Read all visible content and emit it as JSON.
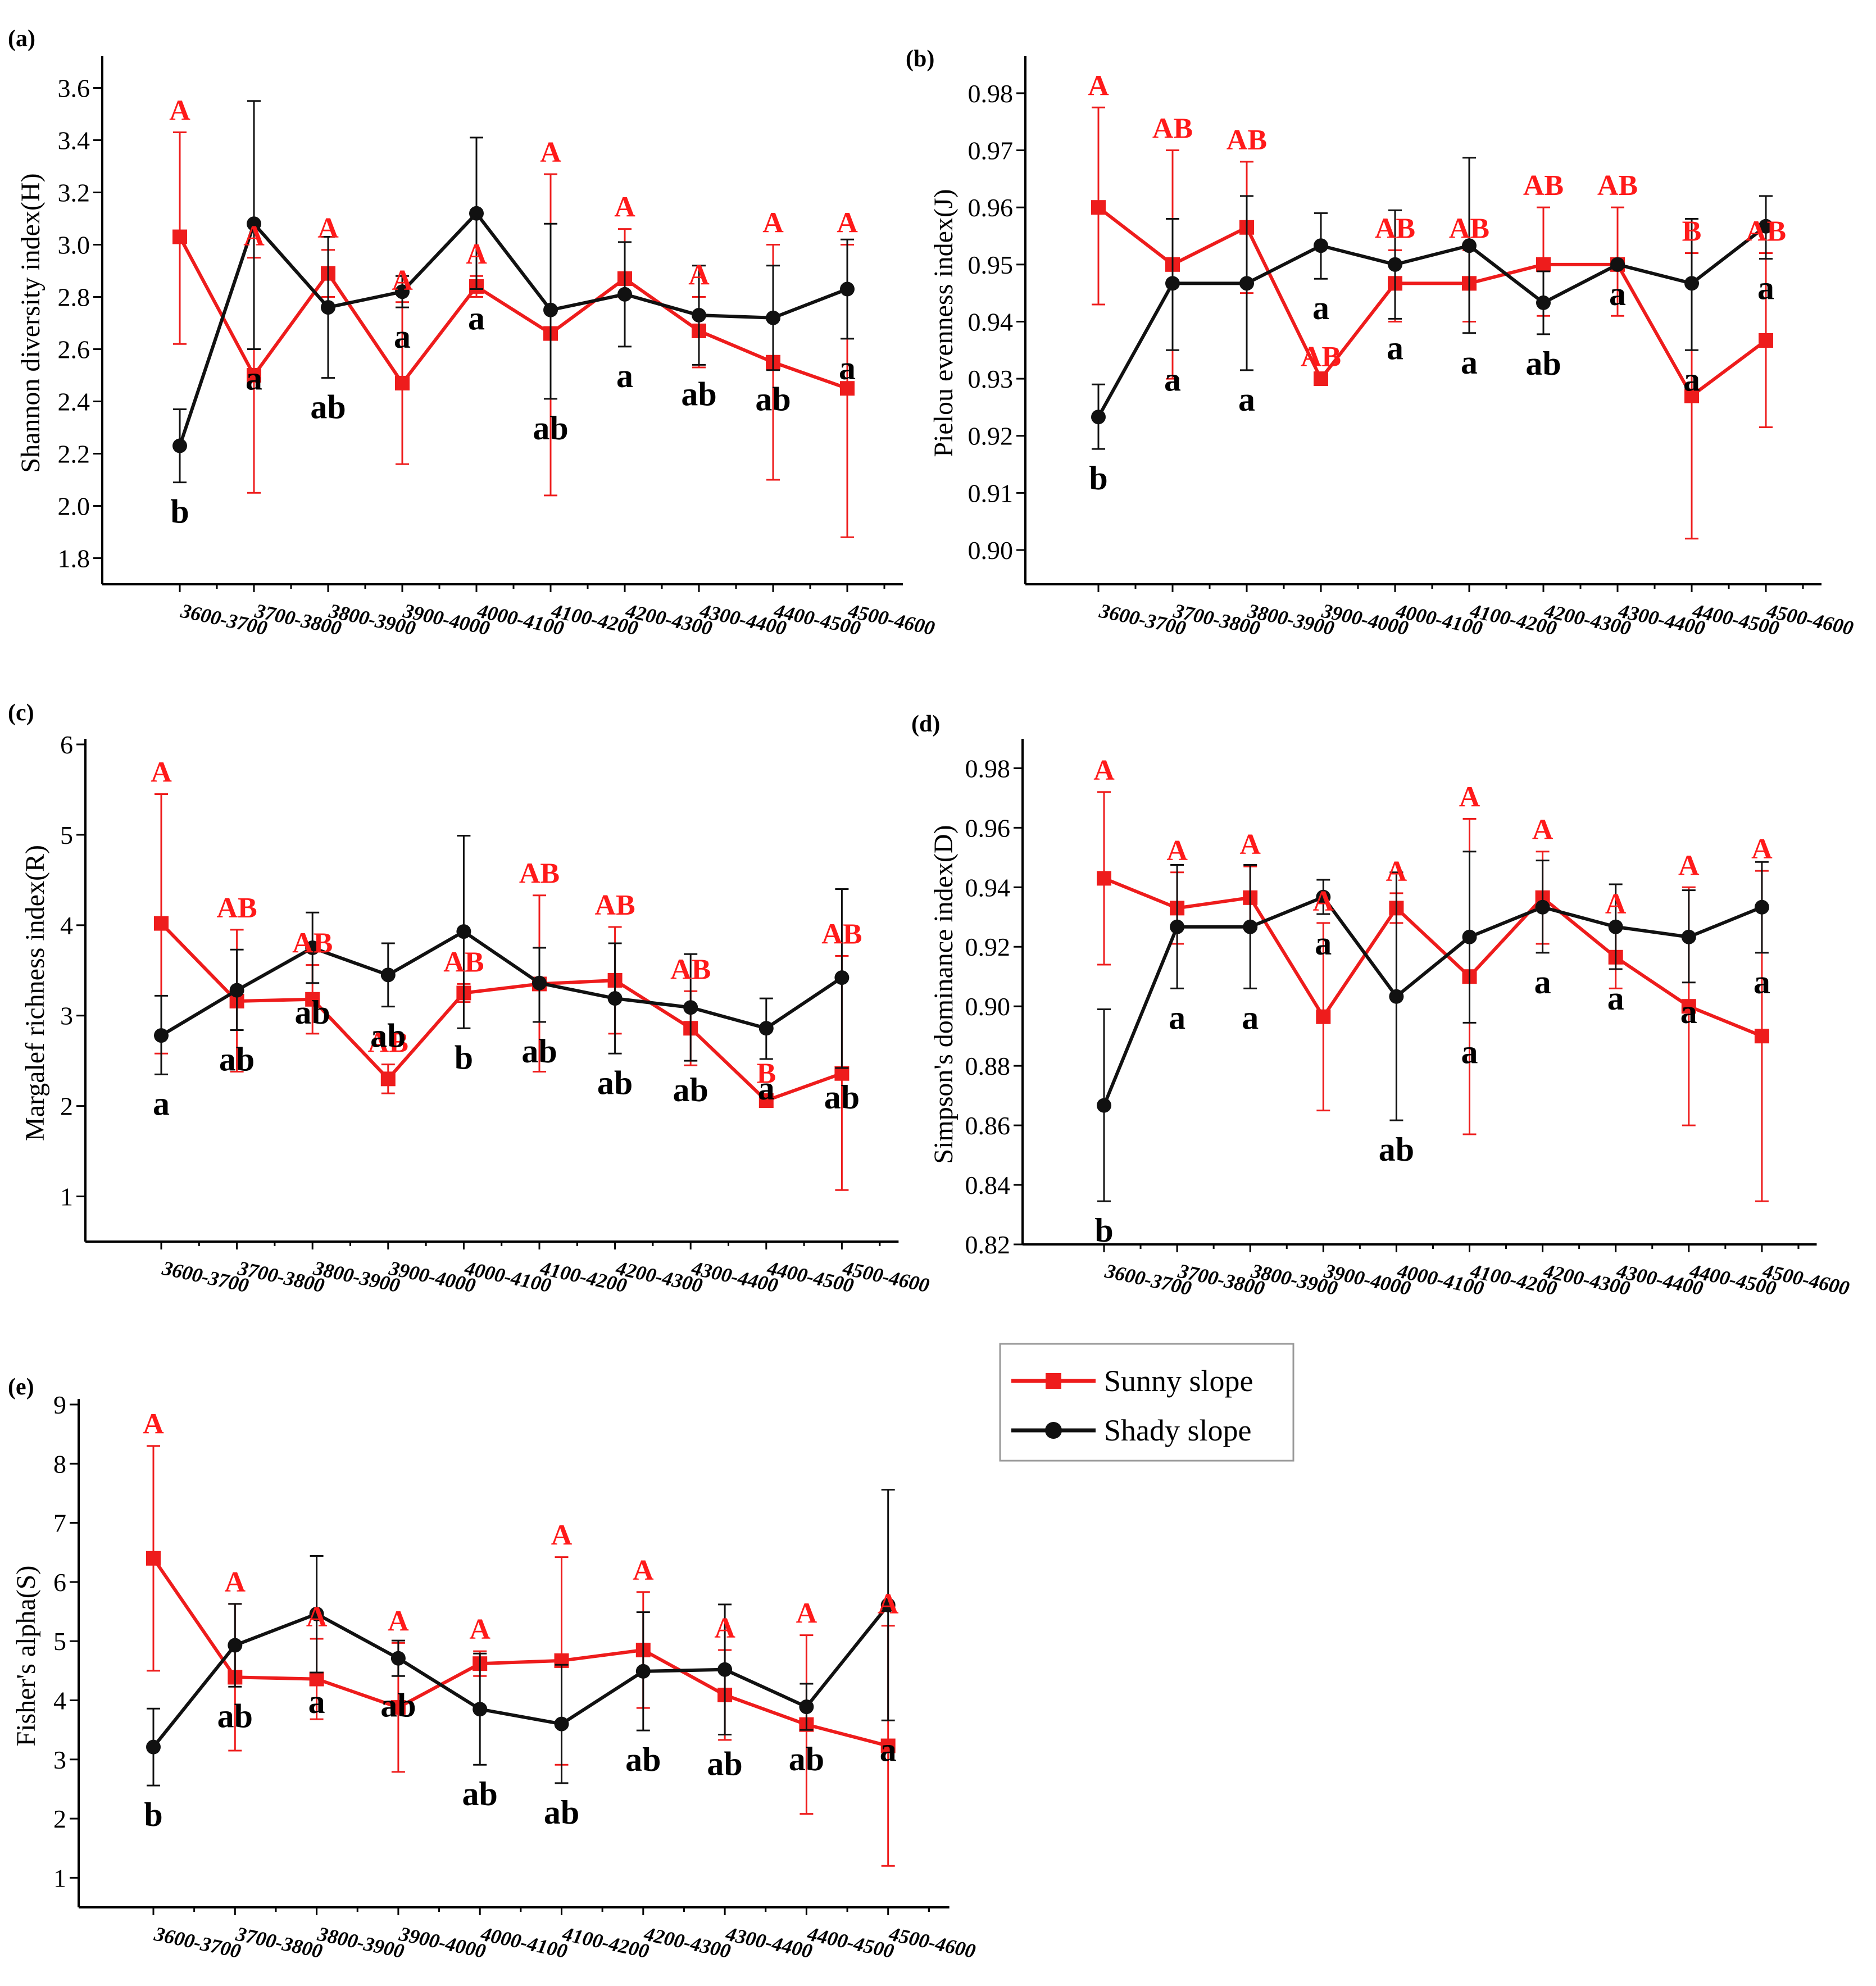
{
  "colors": {
    "sunny": "#ee1c1c",
    "shady": "#111111"
  },
  "legend": {
    "items": [
      {
        "label": "Sunny slope",
        "color": "#ee1c1c",
        "marker": "square"
      },
      {
        "label": "Shady slope",
        "color": "#111111",
        "marker": "circle"
      }
    ]
  },
  "chart_data": [
    {
      "type": "line",
      "panel_label": "(a)",
      "ylabel": "Shannon diversity index(H)",
      "categories": [
        "3600-3700",
        "3700-3800",
        "3800-3900",
        "3900-4000",
        "4000-4100",
        "4100-4200",
        "4200-4300",
        "4300-4400",
        "4400-4500",
        "4500-4600"
      ],
      "ylim": [
        1.7,
        3.7
      ],
      "yticks": [
        "1.8",
        "2.0",
        "2.2",
        "2.4",
        "2.6",
        "2.8",
        "3.0",
        "3.2",
        "3.4",
        "3.6"
      ],
      "series": [
        {
          "name": "Sunny slope",
          "values": [
            3.03,
            2.5,
            2.89,
            2.47,
            2.84,
            2.66,
            2.87,
            2.67,
            2.55,
            2.45
          ],
          "err_low": [
            2.62,
            2.05,
            2.8,
            2.16,
            2.8,
            2.04,
            2.8,
            2.53,
            2.1,
            1.88
          ],
          "err_high": [
            3.43,
            2.95,
            2.98,
            2.78,
            2.88,
            3.27,
            3.06,
            2.8,
            3.0,
            3.0
          ]
        },
        {
          "name": "Shady slope",
          "values": [
            2.23,
            3.08,
            2.76,
            2.82,
            3.12,
            2.75,
            2.81,
            2.73,
            2.72,
            2.83
          ],
          "err_low": [
            2.09,
            2.6,
            2.49,
            2.76,
            2.83,
            2.41,
            2.61,
            2.54,
            2.52,
            2.64
          ],
          "err_high": [
            2.37,
            3.55,
            3.03,
            2.88,
            3.41,
            3.08,
            3.01,
            2.92,
            2.92,
            3.02
          ]
        }
      ],
      "sig_upper": [
        "A",
        "A",
        "A",
        "A",
        "A",
        "A",
        "A",
        "A",
        "A",
        "A"
      ],
      "sig_lower": [
        "b",
        "a",
        "ab",
        "a",
        "a",
        "ab",
        "a",
        "ab",
        "ab",
        "a"
      ]
    },
    {
      "type": "line",
      "panel_label": "(b)",
      "ylabel": "Pielou evenness index(J)",
      "categories": [
        "3600-3700",
        "3700-3800",
        "3800-3900",
        "3900-4000",
        "4000-4100",
        "4100-4200",
        "4200-4300",
        "4300-4400",
        "4400-4500",
        "4500-4600"
      ],
      "ylim": [
        0.894,
        0.9855
      ],
      "yticks": [
        "0.90",
        "0.91",
        "0.92",
        "0.93",
        "0.94",
        "0.95",
        "0.96",
        "0.97",
        "0.98"
      ],
      "series": [
        {
          "name": "Sunny slope",
          "values": [
            0.96,
            0.95,
            0.9565,
            0.93,
            0.9467,
            0.9467,
            0.95,
            0.95,
            0.927,
            0.9367
          ],
          "err_low": [
            0.943,
            0.93,
            0.945,
            0.93,
            0.94,
            0.94,
            0.941,
            0.941,
            0.902,
            0.9215
          ],
          "err_high": [
            0.9775,
            0.97,
            0.968,
            0.93,
            0.9525,
            0.9525,
            0.96,
            0.96,
            0.952,
            0.952
          ]
        },
        {
          "name": "Shady slope",
          "values": [
            0.9233,
            0.9467,
            0.9467,
            0.9533,
            0.95,
            0.9533,
            0.9433,
            0.95,
            0.9467,
            0.9567
          ],
          "err_low": [
            0.9177,
            0.935,
            0.9315,
            0.9475,
            0.9405,
            0.938,
            0.9378,
            0.95,
            0.935,
            0.951
          ],
          "err_high": [
            0.929,
            0.958,
            0.962,
            0.959,
            0.9595,
            0.9687,
            0.9488,
            0.95,
            0.958,
            0.962
          ]
        }
      ],
      "sig_upper": [
        "A",
        "AB",
        "AB",
        "AB",
        "AB",
        "AB",
        "AB",
        "AB",
        "B",
        "AB"
      ],
      "sig_lower": [
        "b",
        "a",
        "a",
        "a",
        "a",
        "a",
        "ab",
        "a",
        "a",
        "a"
      ]
    },
    {
      "type": "line",
      "panel_label": "(c)",
      "ylabel": "Margalef richness index(R)",
      "categories": [
        "3600-3700",
        "3700-3800",
        "3800-3900",
        "3900-4000",
        "4000-4100",
        "4100-4200",
        "4200-4300",
        "4300-4400",
        "4400-4500",
        "4500-4600"
      ],
      "ylim": [
        0.5,
        6.0
      ],
      "yticks": [
        "1",
        "2",
        "3",
        "4",
        "5",
        "6"
      ],
      "series": [
        {
          "name": "Sunny slope",
          "values": [
            4.02,
            3.16,
            3.18,
            2.3,
            3.25,
            3.35,
            3.39,
            2.86,
            2.06,
            2.36
          ],
          "err_low": [
            2.58,
            2.38,
            2.8,
            2.14,
            3.15,
            2.38,
            2.8,
            2.45,
            2.0,
            1.07
          ],
          "err_high": [
            5.45,
            3.95,
            3.56,
            2.46,
            3.35,
            4.33,
            3.98,
            3.27,
            2.12,
            3.66
          ]
        },
        {
          "name": "Shady slope",
          "values": [
            2.78,
            3.28,
            3.75,
            3.45,
            3.93,
            3.36,
            3.19,
            3.09,
            2.86,
            3.42
          ],
          "err_low": [
            2.35,
            2.84,
            3.36,
            3.1,
            2.86,
            2.93,
            2.58,
            2.5,
            2.52,
            2.42
          ],
          "err_high": [
            3.22,
            3.73,
            4.14,
            3.8,
            4.99,
            3.75,
            3.8,
            3.68,
            3.19,
            4.4
          ]
        }
      ],
      "sig_upper": [
        "A",
        "AB",
        "AB",
        "AB",
        "AB",
        "AB",
        "AB",
        "AB",
        "B",
        "AB"
      ],
      "sig_lower": [
        "a",
        "ab",
        "ab",
        "ab",
        "b",
        "ab",
        "ab",
        "ab",
        "a",
        "ab"
      ]
    },
    {
      "type": "line",
      "panel_label": "(d)",
      "ylabel": "Simpson's dominance index(D)",
      "categories": [
        "3600-3700",
        "3700-3800",
        "3800-3900",
        "3900-4000",
        "4000-4100",
        "4100-4200",
        "4200-4300",
        "4300-4400",
        "4400-4500",
        "4500-4600"
      ],
      "ylim": [
        0.82,
        0.988
      ],
      "yticks": [
        "0.82",
        "0.84",
        "0.86",
        "0.88",
        "0.90",
        "0.92",
        "0.94",
        "0.96",
        "0.98"
      ],
      "series": [
        {
          "name": "Sunny slope",
          "values": [
            0.943,
            0.933,
            0.9365,
            0.8965,
            0.933,
            0.91,
            0.9365,
            0.9165,
            0.9,
            0.89
          ],
          "err_low": [
            0.914,
            0.921,
            0.926,
            0.865,
            0.928,
            0.857,
            0.921,
            0.906,
            0.86,
            0.8345
          ],
          "err_high": [
            0.972,
            0.945,
            0.947,
            0.928,
            0.938,
            0.963,
            0.952,
            0.927,
            0.94,
            0.9455
          ]
        },
        {
          "name": "Shady slope",
          "values": [
            0.8667,
            0.9267,
            0.9267,
            0.9367,
            0.9033,
            0.9233,
            0.9333,
            0.9267,
            0.9233,
            0.9333
          ],
          "err_low": [
            0.8345,
            0.906,
            0.906,
            0.931,
            0.8617,
            0.8945,
            0.918,
            0.9125,
            0.908,
            0.918
          ],
          "err_high": [
            0.899,
            0.9475,
            0.9475,
            0.9425,
            0.945,
            0.952,
            0.949,
            0.941,
            0.939,
            0.9485
          ]
        }
      ],
      "sig_upper": [
        "A",
        "A",
        "A",
        "A",
        "A",
        "A",
        "A",
        "A",
        "A",
        "A"
      ],
      "sig_lower": [
        "b",
        "a",
        "a",
        "a",
        "ab",
        "a",
        "a",
        "a",
        "a",
        "a"
      ]
    },
    {
      "type": "line",
      "panel_label": "(e)",
      "ylabel": "Fisher's alpha(S)",
      "categories": [
        "3600-3700",
        "3700-3800",
        "3800-3900",
        "3900-4000",
        "4000-4100",
        "4100-4200",
        "4200-4300",
        "4300-4400",
        "4400-4500",
        "4500-4600"
      ],
      "ylim": [
        0.5,
        9.0
      ],
      "yticks": [
        "1",
        "2",
        "3",
        "4",
        "5",
        "6",
        "7",
        "8",
        "9"
      ],
      "series": [
        {
          "name": "Sunny slope",
          "values": [
            6.4,
            4.39,
            4.36,
            3.88,
            4.62,
            4.67,
            4.85,
            4.09,
            3.59,
            3.23
          ],
          "err_low": [
            4.5,
            3.15,
            3.68,
            2.79,
            4.41,
            2.91,
            3.87,
            3.33,
            2.08,
            1.2
          ],
          "err_high": [
            8.3,
            5.63,
            5.04,
            4.97,
            4.83,
            6.42,
            5.83,
            4.85,
            5.1,
            5.26
          ]
        },
        {
          "name": "Shady slope",
          "values": [
            3.21,
            4.93,
            5.46,
            4.71,
            3.85,
            3.6,
            4.49,
            4.52,
            3.89,
            5.61
          ],
          "err_low": [
            2.56,
            4.23,
            4.47,
            4.41,
            2.91,
            2.6,
            3.49,
            3.42,
            3.5,
            3.66
          ],
          "err_high": [
            3.86,
            5.63,
            6.44,
            5.01,
            4.79,
            4.6,
            5.49,
            5.62,
            4.28,
            7.56
          ]
        }
      ],
      "sig_upper": [
        "A",
        "A",
        "A",
        "A",
        "A",
        "A",
        "A",
        "A",
        "A",
        "A"
      ],
      "sig_lower": [
        "b",
        "ab",
        "a",
        "ab",
        "ab",
        "ab",
        "ab",
        "ab",
        "ab",
        "a"
      ]
    }
  ]
}
